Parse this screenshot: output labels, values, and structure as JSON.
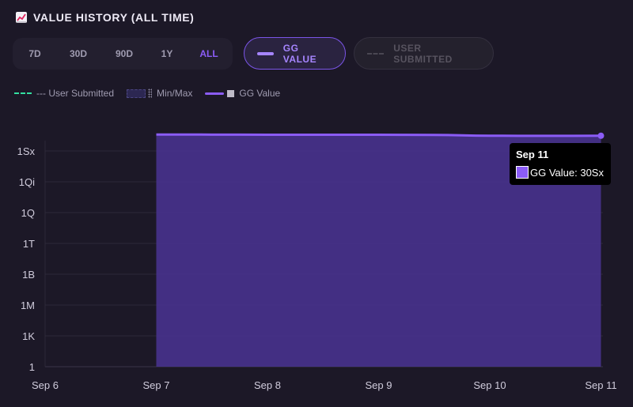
{
  "header": {
    "title": "VALUE HISTORY (ALL TIME)",
    "icon": "chart-increasing-icon"
  },
  "ranges": [
    {
      "label": "7D",
      "active": false
    },
    {
      "label": "30D",
      "active": false
    },
    {
      "label": "90D",
      "active": false
    },
    {
      "label": "1Y",
      "active": false
    },
    {
      "label": "ALL",
      "active": true
    }
  ],
  "toggles": {
    "gg": {
      "label": "GG VALUE",
      "active": true
    },
    "user": {
      "label": "USER SUBMITTED",
      "active": false
    }
  },
  "legend": {
    "user_submitted": "--- User Submitted",
    "minmax": "Min/Max",
    "gg_value": "GG Value"
  },
  "tooltip": {
    "date": "Sep 11",
    "label": "GG Value: 30Sx"
  },
  "colors": {
    "accent": "#8b5cf6",
    "area": "#4a3494",
    "user_submitted": "#34e0a1",
    "background": "#1c1827"
  },
  "chart_data": {
    "type": "area",
    "x": [
      "Sep 7",
      "Sep 8",
      "Sep 9",
      "Sep 10",
      "Sep 11"
    ],
    "x_ticks": [
      "Sep 6",
      "Sep 7",
      "Sep 8",
      "Sep 9",
      "Sep 10",
      "Sep 11"
    ],
    "y_scale": "log",
    "y_ticks": [
      "1",
      "1K",
      "1M",
      "1B",
      "1T",
      "1Q",
      "1Qi",
      "1Sx"
    ],
    "series": [
      {
        "name": "GG Value",
        "x": [
          "Sep 7",
          "Sep 7.5",
          "Sep 8",
          "Sep 8.5",
          "Sep 9",
          "Sep 9.5",
          "Sep 10",
          "Sep 10.5",
          "Sep 11"
        ],
        "y_log10": [
          22.6,
          22.59,
          22.58,
          22.58,
          22.58,
          22.56,
          22.48,
          22.47,
          22.48
        ]
      }
    ]
  }
}
